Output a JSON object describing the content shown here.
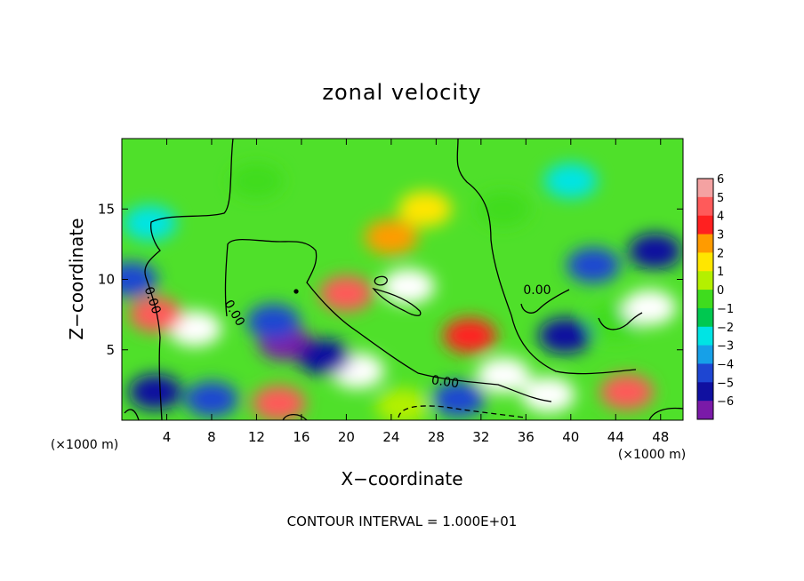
{
  "chart_data": {
    "type": "heatmap",
    "title": "zonal velocity",
    "xlabel": "X−coordinate",
    "ylabel": "Z−coordinate",
    "x_unit_left": "(×1000 m)",
    "x_unit_right": "(×1000 m)",
    "footer": "CONTOUR INTERVAL = 1.000E+01",
    "xlim": [
      0,
      50
    ],
    "ylim": [
      0,
      20
    ],
    "x_ticks": [
      4,
      8,
      12,
      16,
      20,
      24,
      28,
      32,
      36,
      40,
      44,
      48
    ],
    "x_tick_labels": [
      "4",
      "8",
      "12",
      "16",
      "20",
      "24",
      "28",
      "32",
      "36",
      "40",
      "44",
      "48"
    ],
    "y_ticks": [
      5,
      10,
      15
    ],
    "y_tick_labels": [
      "5",
      "10",
      "15"
    ],
    "contour_labels": [
      {
        "text": "0.00",
        "x": 2.7,
        "z": 8.5,
        "angle": 72
      },
      {
        "text": "0.00",
        "x": 10.0,
        "z": 7.6,
        "angle": 60
      },
      {
        "text": "0.00",
        "x": 28.8,
        "z": 2.7,
        "angle": 8
      },
      {
        "text": "0.00",
        "x": 37.0,
        "z": 9.2,
        "angle": 0
      }
    ],
    "colorbar": {
      "min": -6,
      "max": 6,
      "levels": [
        6,
        5,
        4,
        3,
        2,
        1,
        0,
        -1,
        -2,
        -3,
        -4,
        -5,
        -6
      ],
      "labels": [
        "6",
        "5",
        "4",
        "3",
        "2",
        "1",
        "0",
        "−1",
        "−2",
        "−3",
        "−4",
        "−5",
        "−6"
      ],
      "colors": [
        "#f4a2a2",
        "#ff5a5a",
        "#ff2020",
        "#ff9b00",
        "#ffe600",
        "#b4f000",
        "#3fdc1e",
        "#00c850",
        "#00e4e4",
        "#16a0e8",
        "#1e46d2",
        "#1010a0",
        "#7a1aa8"
      ]
    },
    "field_features": [
      {
        "x": 25.5,
        "z": 9.5,
        "value": 6
      },
      {
        "x": 20.0,
        "z": 9.0,
        "value": 5
      },
      {
        "x": 27.0,
        "z": 15.0,
        "value": 2
      },
      {
        "x": 24.0,
        "z": 13.0,
        "value": 3
      },
      {
        "x": 6.5,
        "z": 6.5,
        "value": 6
      },
      {
        "x": 3.0,
        "z": 7.5,
        "value": 5
      },
      {
        "x": 14.5,
        "z": 5.5,
        "value": -6
      },
      {
        "x": 13.5,
        "z": 7.0,
        "value": -4
      },
      {
        "x": 21.0,
        "z": 3.5,
        "value": 6
      },
      {
        "x": 18.0,
        "z": 4.5,
        "value": -5
      },
      {
        "x": 34.0,
        "z": 3.2,
        "value": 6
      },
      {
        "x": 38.0,
        "z": 1.8,
        "value": 6
      },
      {
        "x": 39.5,
        "z": 6.0,
        "value": -5
      },
      {
        "x": 44.0,
        "z": 7.0,
        "value": 0
      },
      {
        "x": 47.0,
        "z": 8.0,
        "value": 6
      },
      {
        "x": 47.5,
        "z": 12.0,
        "value": -5
      },
      {
        "x": 42.0,
        "z": 11.0,
        "value": -4
      },
      {
        "x": 2.5,
        "z": 14.0,
        "value": -2
      },
      {
        "x": 0.8,
        "z": 10.0,
        "value": -4
      },
      {
        "x": 40.0,
        "z": 17.0,
        "value": -2
      },
      {
        "x": 12.0,
        "z": 17.0,
        "value": 0
      },
      {
        "x": 34.0,
        "z": 15.0,
        "value": 0
      },
      {
        "x": 3.0,
        "z": 2.0,
        "value": -5
      },
      {
        "x": 8.0,
        "z": 1.5,
        "value": -4
      },
      {
        "x": 14.0,
        "z": 1.2,
        "value": 5
      },
      {
        "x": 25.0,
        "z": 1.0,
        "value": 1
      },
      {
        "x": 30.0,
        "z": 1.5,
        "value": -4
      },
      {
        "x": 31.0,
        "z": 6.0,
        "value": 4
      },
      {
        "x": 45.0,
        "z": 2.0,
        "value": 5
      }
    ]
  }
}
